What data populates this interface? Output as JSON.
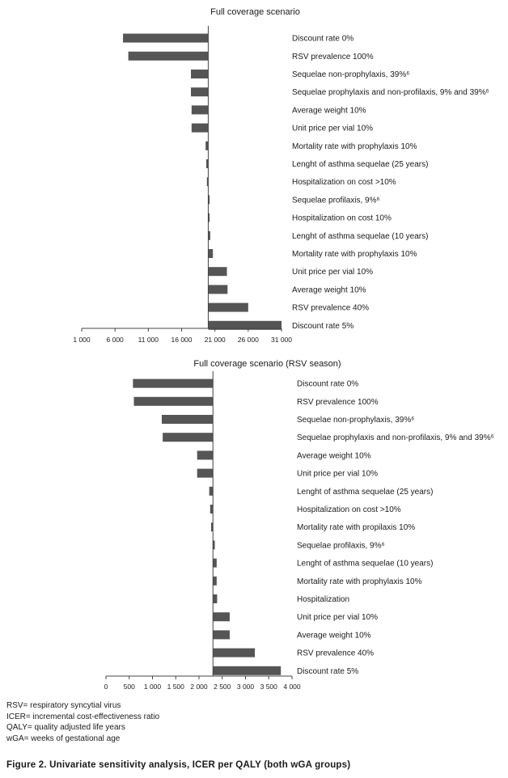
{
  "chart_data": [
    {
      "type": "bar",
      "orientation": "horizontal",
      "title": "Full coverage scenario",
      "xlim": [
        1000,
        31000
      ],
      "x_ticks": [
        "1 000",
        "6 000",
        "11 000",
        "16 000",
        "21 000",
        "26 000",
        "31 000"
      ],
      "x_tick_values": [
        1000,
        6000,
        11000,
        16000,
        21000,
        26000,
        31000
      ],
      "base_value": 20000,
      "categories": [
        "Discount rate 0%",
        "RSV prevalence 100%",
        "Sequelae non-prophylaxis, 39%⁶",
        "Sequelae prophylaxis and non-profilaxis, 9% and 39%⁶",
        "Average weight 10%",
        "Unit price per vial 10%",
        "Mortality rate with prophylaxis 10%",
        "Lenght of asthma sequelae (25 years)",
        "Hospitalization on cost >10%",
        "Sequelae profilaxis, 9%⁶",
        "Hospitalization on cost 10%",
        "Lenght of asthma sequelae (10 years)",
        "Mortality rate with prophylaxis 10%",
        "Unit price per vial 10%",
        "Average weight 10%",
        "RSV prevalence 40%",
        "Discount rate 5%"
      ],
      "values": [
        7200,
        8000,
        17400,
        17400,
        17500,
        17500,
        19600,
        19700,
        19800,
        20200,
        20200,
        20300,
        20700,
        22800,
        22900,
        26000,
        31000
      ]
    },
    {
      "type": "bar",
      "orientation": "horizontal",
      "title": "Full coverage scenario (RSV season)",
      "xlim": [
        0,
        4000
      ],
      "x_ticks": [
        "0",
        "500",
        "1 000",
        "1 500",
        "2 000",
        "2 500",
        "3 000",
        "3 500",
        "4 000"
      ],
      "x_tick_values": [
        0,
        500,
        1000,
        1500,
        2000,
        2500,
        3000,
        3500,
        4000
      ],
      "base_value": 2300,
      "categories": [
        "Discount rate 0%",
        "RSV prevalence 100%",
        "Sequelae non-prophylaxis, 39%⁶",
        "Sequelae prophylaxis and non-profilaxis, 9% and 39%⁶",
        "Average weight 10%",
        "Unit price per vial 10%",
        "Lenght of asthma sequelae (25 years)",
        "Hospitalization on cost >10%",
        "Mortality rate with propilaxis 10%",
        "Sequelae profilaxis, 9%⁶",
        "Lenght of asthma sequelae (10 years)",
        "Mortality rate with prophylaxis 10%",
        "Hospitalization",
        "Unit price per vial 10%",
        "Average weight 10%",
        "RSV prevalence 40%",
        "Discount rate 5%"
      ],
      "values": [
        580,
        600,
        1200,
        1220,
        1960,
        1960,
        2220,
        2240,
        2260,
        2340,
        2380,
        2380,
        2390,
        2660,
        2660,
        3200,
        3760
      ]
    }
  ],
  "notes": [
    "RSV= respiratory syncytial virus",
    "ICER= incremental cost-effectiveness ratio",
    "QALY= quality adjusted life years",
    "wGA= weeks of gestational age"
  ],
  "caption": "Figure 2. Univariate sensitivity analysis, ICER per QALY (both wGA groups)",
  "colors": {
    "bar": "#555555",
    "axis": "#444444",
    "text": "#1a1a1a"
  }
}
